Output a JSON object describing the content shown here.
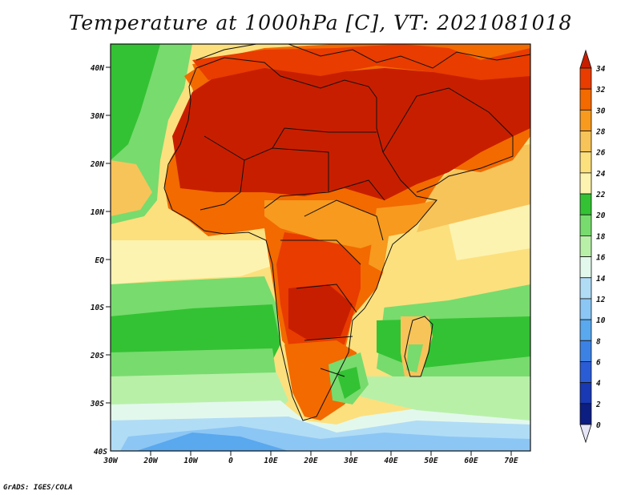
{
  "title": "Temperature at 1000hPa [C], VT: 2021081018",
  "credit": "GrADS: IGES/COLA",
  "map": {
    "lat_labels": [
      "40N",
      "30N",
      "20N",
      "10N",
      "EQ",
      "10S",
      "20S",
      "30S",
      "40S"
    ],
    "lon_labels": [
      "30W",
      "20W",
      "10W",
      "0",
      "10E",
      "20E",
      "30E",
      "40E",
      "50E",
      "60E",
      "70E"
    ]
  },
  "colorbar": {
    "labels": [
      "34",
      "32",
      "30",
      "28",
      "26",
      "24",
      "22",
      "20",
      "18",
      "16",
      "14",
      "12",
      "10",
      "8",
      "6",
      "4",
      "2",
      "0"
    ],
    "colors": [
      "#c81e00",
      "#e83c00",
      "#f26a00",
      "#f79a1e",
      "#f7c45a",
      "#fce07e",
      "#fdf3b0",
      "#33c233",
      "#78db6e",
      "#b8f0a8",
      "#e3f8ec",
      "#b0dcf6",
      "#8cc6f4",
      "#5aa8ee",
      "#3c82e4",
      "#2a5cd6",
      "#1838b4",
      "#0c1e82",
      "#0c1460"
    ]
  }
}
